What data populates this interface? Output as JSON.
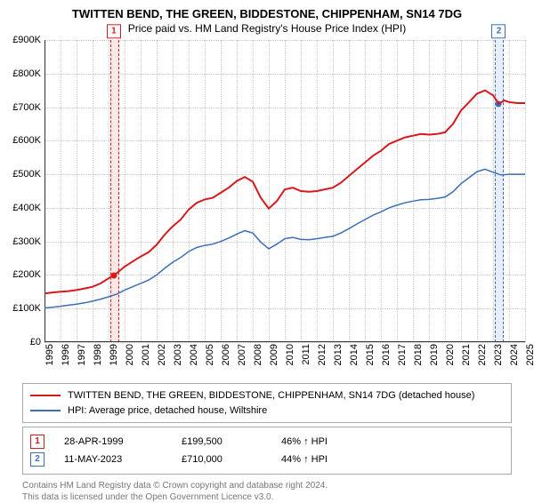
{
  "title_main": "TWITTEN BEND, THE GREEN, BIDDESTONE, CHIPPENHAM, SN14 7DG",
  "title_sub": "Price paid vs. HM Land Registry's House Price Index (HPI)",
  "chart": {
    "type": "line",
    "background_color": "#ffffff",
    "grid_color": "#c8c8c8",
    "axis_color": "#333333",
    "x": {
      "min": 1995,
      "max": 2025,
      "ticks_every": 1
    },
    "y": {
      "min": 0,
      "max": 900000,
      "ticks": [
        0,
        100000,
        200000,
        300000,
        400000,
        500000,
        600000,
        700000,
        800000,
        900000
      ],
      "tick_labels": [
        "£0",
        "£100K",
        "£200K",
        "£300K",
        "£400K",
        "£500K",
        "£600K",
        "£700K",
        "£800K",
        "£900K"
      ]
    },
    "series": [
      {
        "id": "price_paid",
        "label": "TWITTEN BEND, THE GREEN, BIDDESTONE, CHIPPENHAM, SN14 7DG (detached house)",
        "color": "#d7191c",
        "line_width": 2,
        "points": [
          [
            1995.0,
            145000
          ],
          [
            1995.5,
            148000
          ],
          [
            1996.0,
            150000
          ],
          [
            1996.5,
            152000
          ],
          [
            1997.0,
            155000
          ],
          [
            1997.5,
            160000
          ],
          [
            1998.0,
            165000
          ],
          [
            1998.5,
            175000
          ],
          [
            1999.0,
            190000
          ],
          [
            1999.33,
            199500
          ],
          [
            1999.5,
            205000
          ],
          [
            2000.0,
            225000
          ],
          [
            2000.5,
            240000
          ],
          [
            2001.0,
            255000
          ],
          [
            2001.5,
            268000
          ],
          [
            2002.0,
            290000
          ],
          [
            2002.5,
            320000
          ],
          [
            2003.0,
            345000
          ],
          [
            2003.5,
            365000
          ],
          [
            2004.0,
            395000
          ],
          [
            2004.5,
            415000
          ],
          [
            2005.0,
            425000
          ],
          [
            2005.5,
            430000
          ],
          [
            2006.0,
            445000
          ],
          [
            2006.5,
            460000
          ],
          [
            2007.0,
            480000
          ],
          [
            2007.5,
            492000
          ],
          [
            2008.0,
            478000
          ],
          [
            2008.5,
            430000
          ],
          [
            2009.0,
            398000
          ],
          [
            2009.5,
            420000
          ],
          [
            2010.0,
            455000
          ],
          [
            2010.5,
            460000
          ],
          [
            2011.0,
            450000
          ],
          [
            2011.5,
            448000
          ],
          [
            2012.0,
            450000
          ],
          [
            2012.5,
            455000
          ],
          [
            2013.0,
            460000
          ],
          [
            2013.5,
            475000
          ],
          [
            2014.0,
            495000
          ],
          [
            2014.5,
            515000
          ],
          [
            2015.0,
            535000
          ],
          [
            2015.5,
            555000
          ],
          [
            2016.0,
            570000
          ],
          [
            2016.5,
            590000
          ],
          [
            2017.0,
            600000
          ],
          [
            2017.5,
            610000
          ],
          [
            2018.0,
            615000
          ],
          [
            2018.5,
            620000
          ],
          [
            2019.0,
            618000
          ],
          [
            2019.5,
            620000
          ],
          [
            2020.0,
            625000
          ],
          [
            2020.5,
            650000
          ],
          [
            2021.0,
            690000
          ],
          [
            2021.5,
            715000
          ],
          [
            2022.0,
            740000
          ],
          [
            2022.5,
            750000
          ],
          [
            2023.0,
            735000
          ],
          [
            2023.36,
            710000
          ],
          [
            2023.7,
            720000
          ],
          [
            2024.0,
            715000
          ],
          [
            2024.5,
            712000
          ],
          [
            2025.0,
            712000
          ]
        ]
      },
      {
        "id": "hpi",
        "label": "HPI: Average price, detached house, Wiltshire",
        "color": "#3b6fb6",
        "line_width": 1.5,
        "points": [
          [
            1995.0,
            102000
          ],
          [
            1995.5,
            104000
          ],
          [
            1996.0,
            107000
          ],
          [
            1996.5,
            110000
          ],
          [
            1997.0,
            113000
          ],
          [
            1997.5,
            117000
          ],
          [
            1998.0,
            122000
          ],
          [
            1998.5,
            128000
          ],
          [
            1999.0,
            135000
          ],
          [
            1999.5,
            143000
          ],
          [
            2000.0,
            155000
          ],
          [
            2000.5,
            165000
          ],
          [
            2001.0,
            175000
          ],
          [
            2001.5,
            185000
          ],
          [
            2002.0,
            200000
          ],
          [
            2002.5,
            220000
          ],
          [
            2003.0,
            238000
          ],
          [
            2003.5,
            252000
          ],
          [
            2004.0,
            270000
          ],
          [
            2004.5,
            282000
          ],
          [
            2005.0,
            288000
          ],
          [
            2005.5,
            292000
          ],
          [
            2006.0,
            300000
          ],
          [
            2006.5,
            310000
          ],
          [
            2007.0,
            322000
          ],
          [
            2007.5,
            332000
          ],
          [
            2008.0,
            325000
          ],
          [
            2008.5,
            298000
          ],
          [
            2009.0,
            278000
          ],
          [
            2009.5,
            292000
          ],
          [
            2010.0,
            308000
          ],
          [
            2010.5,
            312000
          ],
          [
            2011.0,
            306000
          ],
          [
            2011.5,
            305000
          ],
          [
            2012.0,
            308000
          ],
          [
            2012.5,
            312000
          ],
          [
            2013.0,
            315000
          ],
          [
            2013.5,
            325000
          ],
          [
            2014.0,
            338000
          ],
          [
            2014.5,
            352000
          ],
          [
            2015.0,
            365000
          ],
          [
            2015.5,
            378000
          ],
          [
            2016.0,
            388000
          ],
          [
            2016.5,
            400000
          ],
          [
            2017.0,
            408000
          ],
          [
            2017.5,
            415000
          ],
          [
            2018.0,
            420000
          ],
          [
            2018.5,
            424000
          ],
          [
            2019.0,
            425000
          ],
          [
            2019.5,
            428000
          ],
          [
            2020.0,
            432000
          ],
          [
            2020.5,
            448000
          ],
          [
            2021.0,
            472000
          ],
          [
            2021.5,
            490000
          ],
          [
            2022.0,
            508000
          ],
          [
            2022.5,
            515000
          ],
          [
            2023.0,
            506000
          ],
          [
            2023.5,
            498000
          ],
          [
            2024.0,
            500000
          ],
          [
            2024.5,
            500000
          ],
          [
            2025.0,
            500000
          ]
        ]
      }
    ],
    "markers": [
      {
        "id": "m1",
        "label": "1",
        "x": 1999.33,
        "y": 199500,
        "color": "#d7191c",
        "band_color": "#ffe8e8"
      },
      {
        "id": "m2",
        "label": "2",
        "x": 2023.36,
        "y": 710000,
        "color": "#3b6fb6",
        "band_color": "#e8eeff"
      }
    ]
  },
  "legend": {
    "items": [
      {
        "color": "#d7191c",
        "label": "TWITTEN BEND, THE GREEN, BIDDESTONE, CHIPPENHAM, SN14 7DG (detached house)"
      },
      {
        "color": "#3b6fb6",
        "label": "HPI: Average price, detached house, Wiltshire"
      }
    ]
  },
  "points_table": {
    "rows": [
      {
        "marker": "1",
        "marker_color": "#d7191c",
        "date": "28-APR-1999",
        "price": "£199,500",
        "hpi": "46% ↑ HPI"
      },
      {
        "marker": "2",
        "marker_color": "#3b6fb6",
        "date": "11-MAY-2023",
        "price": "£710,000",
        "hpi": "44% ↑ HPI"
      }
    ]
  },
  "footer": {
    "line1": "Contains HM Land Registry data © Crown copyright and database right 2024.",
    "line2": "This data is licensed under the Open Government Licence v3.0."
  }
}
